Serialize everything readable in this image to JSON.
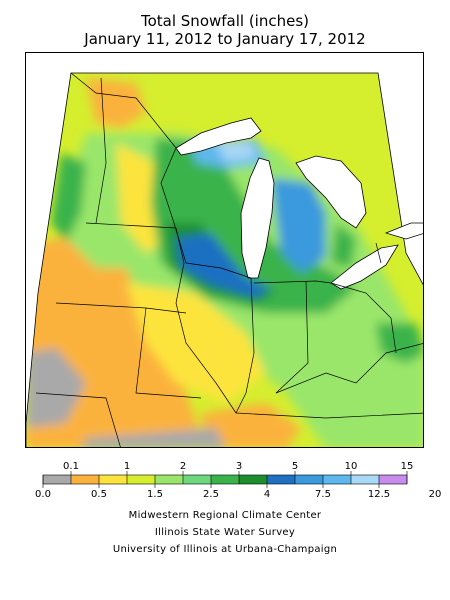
{
  "title": {
    "line1": "Total Snowfall (inches)",
    "line2": "January 11, 2012 to January 17, 2012"
  },
  "legend": {
    "top_labels": [
      "0.1",
      "1",
      "2",
      "3",
      "5",
      "10",
      "15"
    ],
    "bottom_labels": [
      "0.0",
      "0.5",
      "1.5",
      "2.5",
      "4",
      "7.5",
      "12.5",
      "20"
    ],
    "colors": [
      "#a9a9a9",
      "#fbb23c",
      "#fce43c",
      "#d5ee2e",
      "#9ae66b",
      "#6ed87e",
      "#3bb34b",
      "#1d8e2d",
      "#1f70c2",
      "#3b99dd",
      "#5eb8ed",
      "#aad8f7",
      "#c98cee"
    ]
  },
  "palette": {
    "lake": "#ffffff",
    "border": "#000000"
  },
  "credits": {
    "line1": "Midwestern Regional Climate Center",
    "line2": "Illinois State Water Survey",
    "line3": "University of Illinois at Urbana-Champaign"
  }
}
